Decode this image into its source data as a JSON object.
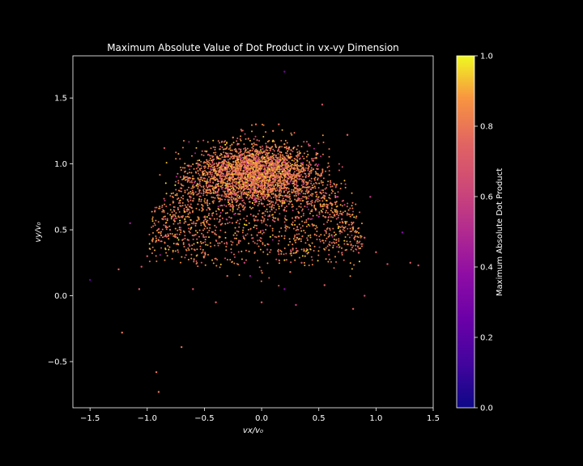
{
  "chart_data": {
    "type": "scatter",
    "title": "Maximum Absolute Value of Dot Product in vx-vy Dimension",
    "xlabel": "vx/v₀",
    "ylabel": "vy/v₀",
    "xlim": [
      -1.65,
      1.5
    ],
    "ylim": [
      -0.85,
      1.82
    ],
    "xticks": [
      -1.5,
      -1.0,
      -0.5,
      0.0,
      0.5,
      1.0,
      1.5
    ],
    "xtick_labels": [
      "−1.5",
      "−1.0",
      "−0.5",
      "0.0",
      "0.5",
      "1.0",
      "1.5"
    ],
    "yticks": [
      -0.5,
      0.0,
      0.5,
      1.0,
      1.5
    ],
    "ytick_labels": [
      "−0.5",
      "0.0",
      "0.5",
      "1.0",
      "1.5"
    ],
    "grid": false,
    "background": "#000000",
    "colormap": "plasma",
    "colorbar": {
      "label": "Maximum Absolute Dot Product",
      "range": [
        0.0,
        1.0
      ],
      "ticks": [
        0.0,
        0.2,
        0.4,
        0.6,
        0.8,
        1.0
      ],
      "tick_labels": [
        "0.0",
        "0.2",
        "0.4",
        "0.6",
        "0.8",
        "1.0"
      ]
    },
    "points": [
      [
        -0.2,
        0.92,
        0.85
      ],
      [
        0.1,
        0.95,
        0.9
      ],
      [
        0.0,
        1.05,
        0.82
      ],
      [
        -0.35,
        0.88,
        0.88
      ],
      [
        0.3,
        0.9,
        0.86
      ],
      [
        0.05,
        0.85,
        0.8
      ],
      [
        -0.1,
        1.1,
        0.84
      ],
      [
        0.2,
        1.15,
        0.87
      ],
      [
        -0.45,
        0.8,
        0.83
      ],
      [
        0.45,
        0.82,
        0.85
      ],
      [
        -0.6,
        0.72,
        0.8
      ],
      [
        0.6,
        0.7,
        0.82
      ],
      [
        -0.7,
        0.6,
        0.78
      ],
      [
        0.7,
        0.62,
        0.79
      ],
      [
        -0.8,
        0.5,
        0.75
      ],
      [
        0.8,
        0.52,
        0.77
      ],
      [
        -0.9,
        0.42,
        0.72
      ],
      [
        0.9,
        0.44,
        0.74
      ],
      [
        -1.0,
        0.3,
        0.7
      ],
      [
        1.0,
        0.33,
        0.71
      ],
      [
        -1.05,
        0.22,
        0.68
      ],
      [
        1.1,
        0.24,
        0.69
      ],
      [
        -0.5,
        0.3,
        0.73
      ],
      [
        0.4,
        0.32,
        0.76
      ],
      [
        -0.3,
        0.15,
        0.75
      ],
      [
        0.25,
        0.18,
        0.78
      ],
      [
        -0.6,
        0.05,
        0.7
      ],
      [
        0.55,
        0.08,
        0.72
      ],
      [
        -0.2,
        0.4,
        0.8
      ],
      [
        0.15,
        0.45,
        0.81
      ],
      [
        -0.05,
        0.6,
        0.84
      ],
      [
        0.0,
        0.7,
        0.86
      ],
      [
        -0.25,
        1.2,
        0.82
      ],
      [
        0.1,
        1.25,
        0.8
      ],
      [
        -0.05,
        1.3,
        0.78
      ],
      [
        0.15,
        1.3,
        0.76
      ],
      [
        -1.5,
        0.12,
        0.25
      ],
      [
        -1.22,
        -0.28,
        0.8
      ],
      [
        -0.92,
        -0.58,
        0.78
      ],
      [
        -0.9,
        -0.73,
        0.8
      ],
      [
        -0.7,
        -0.39,
        0.79
      ],
      [
        0.53,
        1.45,
        0.7
      ],
      [
        0.2,
        1.7,
        0.3
      ],
      [
        -1.25,
        0.2,
        0.75
      ],
      [
        1.3,
        0.25,
        0.72
      ],
      [
        1.37,
        0.23,
        0.7
      ],
      [
        1.23,
        0.48,
        0.35
      ],
      [
        0.75,
        1.22,
        0.75
      ],
      [
        -0.85,
        1.12,
        0.7
      ],
      [
        -0.4,
        -0.05,
        0.73
      ],
      [
        0.3,
        -0.07,
        0.6
      ],
      [
        0.8,
        -0.1,
        0.75
      ],
      [
        -0.15,
        0.25,
        0.6
      ],
      [
        0.05,
        0.35,
        0.55
      ],
      [
        -0.65,
        0.9,
        0.5
      ],
      [
        0.65,
        0.75,
        0.45
      ],
      [
        -0.38,
        1.05,
        0.58
      ],
      [
        0.42,
        1.0,
        0.62
      ],
      [
        -0.1,
        0.15,
        0.4
      ],
      [
        0.2,
        0.05,
        0.35
      ],
      [
        -0.55,
        1.0,
        0.55
      ],
      [
        0.5,
        0.6,
        0.5
      ],
      [
        -1.15,
        0.55,
        0.45
      ],
      [
        0.95,
        0.75,
        0.55
      ],
      [
        -1.07,
        0.05,
        0.7
      ],
      [
        0.9,
        0.0,
        0.65
      ],
      [
        0.0,
        -0.05,
        0.72
      ],
      [
        0.35,
        0.25,
        0.68
      ]
    ]
  }
}
